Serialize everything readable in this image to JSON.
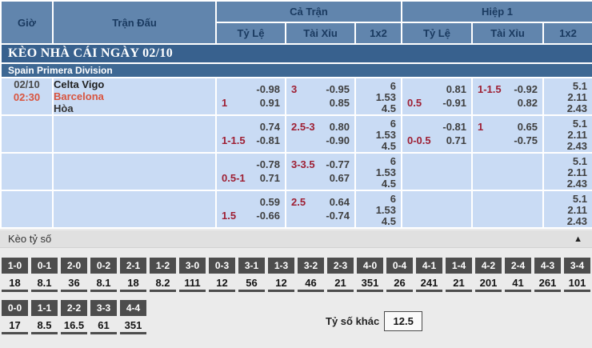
{
  "colors": {
    "header_bg": "#6185ad",
    "header_text": "#1a3a60",
    "section1_bg": "#38618e",
    "section2_bg": "#3e6893",
    "row_bg": "#c9dbf4",
    "handicap_red": "#9e1f33",
    "odds_text": "#3f3f3f",
    "time_red": "#d9543e",
    "home_text": "#1f1f1f",
    "draw_text": "#333333",
    "date_text": "#4a4a4a",
    "score_head_bg": "#4d4d4d",
    "score_val_text": "#141414",
    "bar_bg": "#e0e0e0",
    "page_bg": "#ebebeb"
  },
  "header": {
    "col_time": "Giờ",
    "col_match": "Trận Đấu",
    "group_full": "Cả Trận",
    "group_half": "Hiệp 1",
    "sub_handicap": "Tỷ Lệ",
    "sub_overunder": "Tài Xỉu",
    "sub_1x2": "1x2"
  },
  "sections": {
    "main_title": "KÈO NHÀ CÁI NGÀY 02/10",
    "league": "Spain Primera Division"
  },
  "match": {
    "date": "02/10",
    "time": "02:30",
    "home": "Celta Vigo",
    "away": "Barcelona",
    "draw": "Hòa"
  },
  "odds_rows": [
    {
      "ft_hdp": {
        "l1": "",
        "r1": "-0.98",
        "l2": "1",
        "r2": "0.91"
      },
      "ft_ou": {
        "l1": "3",
        "r1": "-0.95",
        "l2": "",
        "r2": "0.85"
      },
      "ft_1x2": [
        "6",
        "1.53",
        "4.5"
      ],
      "h1_hdp": {
        "l1": "",
        "r1": "0.81",
        "l2": "0.5",
        "r2": "-0.91"
      },
      "h1_ou": {
        "l1": "1-1.5",
        "r1": "-0.92",
        "l2": "",
        "r2": "0.82"
      },
      "h1_1x2": [
        "5.1",
        "2.11",
        "2.43"
      ]
    },
    {
      "ft_hdp": {
        "l1": "",
        "r1": "0.74",
        "l2": "1-1.5",
        "r2": "-0.81"
      },
      "ft_ou": {
        "l1": "2.5-3",
        "r1": "0.80",
        "l2": "",
        "r2": "-0.90"
      },
      "ft_1x2": [
        "6",
        "1.53",
        "4.5"
      ],
      "h1_hdp": {
        "l1": "",
        "r1": "-0.81",
        "l2": "0-0.5",
        "r2": "0.71"
      },
      "h1_ou": {
        "l1": "1",
        "r1": "0.65",
        "l2": "",
        "r2": "-0.75"
      },
      "h1_1x2": [
        "5.1",
        "2.11",
        "2.43"
      ]
    },
    {
      "ft_hdp": {
        "l1": "",
        "r1": "-0.78",
        "l2": "0.5-1",
        "r2": "0.71"
      },
      "ft_ou": {
        "l1": "3-3.5",
        "r1": "-0.77",
        "l2": "",
        "r2": "0.67"
      },
      "ft_1x2": [
        "6",
        "1.53",
        "4.5"
      ],
      "h1_hdp": null,
      "h1_ou": null,
      "h1_1x2": [
        "5.1",
        "2.11",
        "2.43"
      ]
    },
    {
      "ft_hdp": {
        "l1": "",
        "r1": "0.59",
        "l2": "1.5",
        "r2": "-0.66"
      },
      "ft_ou": {
        "l1": "2.5",
        "r1": "0.64",
        "l2": "",
        "r2": "-0.74"
      },
      "ft_1x2": [
        "6",
        "1.53",
        "4.5"
      ],
      "h1_hdp": null,
      "h1_ou": null,
      "h1_1x2": [
        "5.1",
        "2.11",
        "2.43"
      ]
    }
  ],
  "score_section": {
    "title": "Kèo tỷ số",
    "collapse_icon": "▲",
    "row1": [
      {
        "score": "1-0",
        "odds": "18"
      },
      {
        "score": "0-1",
        "odds": "8.1"
      },
      {
        "score": "2-0",
        "odds": "36"
      },
      {
        "score": "0-2",
        "odds": "8.1"
      },
      {
        "score": "2-1",
        "odds": "18"
      },
      {
        "score": "1-2",
        "odds": "8.2"
      },
      {
        "score": "3-0",
        "odds": "111"
      },
      {
        "score": "0-3",
        "odds": "12"
      },
      {
        "score": "3-1",
        "odds": "56"
      },
      {
        "score": "1-3",
        "odds": "12"
      },
      {
        "score": "3-2",
        "odds": "46"
      },
      {
        "score": "2-3",
        "odds": "21"
      },
      {
        "score": "4-0",
        "odds": "351"
      },
      {
        "score": "0-4",
        "odds": "26"
      },
      {
        "score": "4-1",
        "odds": "241"
      },
      {
        "score": "1-4",
        "odds": "21"
      },
      {
        "score": "4-2",
        "odds": "201"
      },
      {
        "score": "2-4",
        "odds": "41"
      },
      {
        "score": "4-3",
        "odds": "261"
      },
      {
        "score": "3-4",
        "odds": "101"
      }
    ],
    "row2": [
      {
        "score": "0-0",
        "odds": "17"
      },
      {
        "score": "1-1",
        "odds": "8.5"
      },
      {
        "score": "2-2",
        "odds": "16.5"
      },
      {
        "score": "3-3",
        "odds": "61"
      },
      {
        "score": "4-4",
        "odds": "351"
      }
    ],
    "other_label": "Tỷ số khác",
    "other_value": "12.5"
  }
}
